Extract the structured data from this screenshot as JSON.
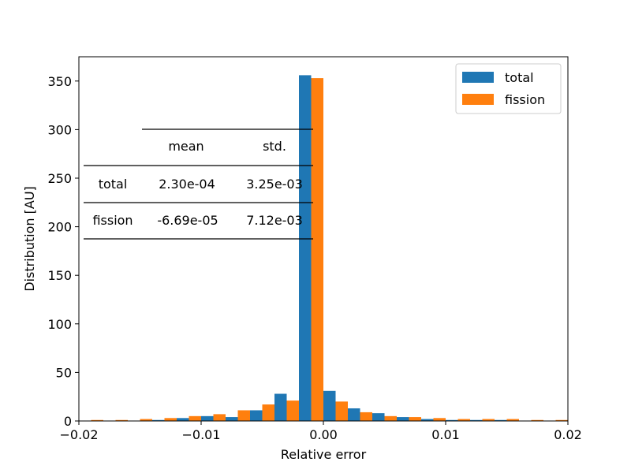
{
  "chart_data": {
    "type": "bar",
    "xlabel": "Relative error",
    "ylabel": "Distribution [AU]",
    "xlim": [
      -0.02,
      0.02
    ],
    "ylim": [
      0,
      375
    ],
    "xticks": [
      -0.02,
      -0.01,
      0.0,
      0.01,
      0.02
    ],
    "xtick_labels": [
      "−0.02",
      "−0.01",
      "0.00",
      "0.01",
      "0.02"
    ],
    "yticks": [
      0,
      50,
      100,
      150,
      200,
      250,
      300,
      350
    ],
    "ytick_labels": [
      "0",
      "50",
      "100",
      "150",
      "200",
      "250",
      "300",
      "350"
    ],
    "bin_centers": [
      -0.019,
      -0.017,
      -0.015,
      -0.013,
      -0.011,
      -0.009,
      -0.007,
      -0.005,
      -0.003,
      -0.001,
      0.001,
      0.003,
      0.005,
      0.007,
      0.009,
      0.011,
      0.013,
      0.015,
      0.017,
      0.019
    ],
    "bin_width": 0.002,
    "series": [
      {
        "name": "total",
        "color": "#1f77b4",
        "values": [
          0,
          0,
          0,
          1,
          3,
          5,
          4,
          11,
          28,
          356,
          31,
          13,
          8,
          4,
          2,
          1,
          1,
          1,
          0,
          0
        ]
      },
      {
        "name": "fission",
        "color": "#ff7f0e",
        "values": [
          1,
          1,
          2,
          3,
          5,
          7,
          11,
          17,
          21,
          353,
          20,
          9,
          5,
          4,
          3,
          2,
          2,
          2,
          1,
          1
        ]
      }
    ],
    "legend": {
      "placement": "top-right",
      "entries": [
        "total",
        "fission"
      ]
    },
    "grid": false,
    "table": {
      "columns": [
        "mean",
        "std."
      ],
      "rows": [
        {
          "label": "total",
          "cells": [
            "2.30e-04",
            "3.25e-03"
          ]
        },
        {
          "label": "fission",
          "cells": [
            "-6.69e-05",
            "7.12e-03"
          ]
        }
      ]
    }
  }
}
